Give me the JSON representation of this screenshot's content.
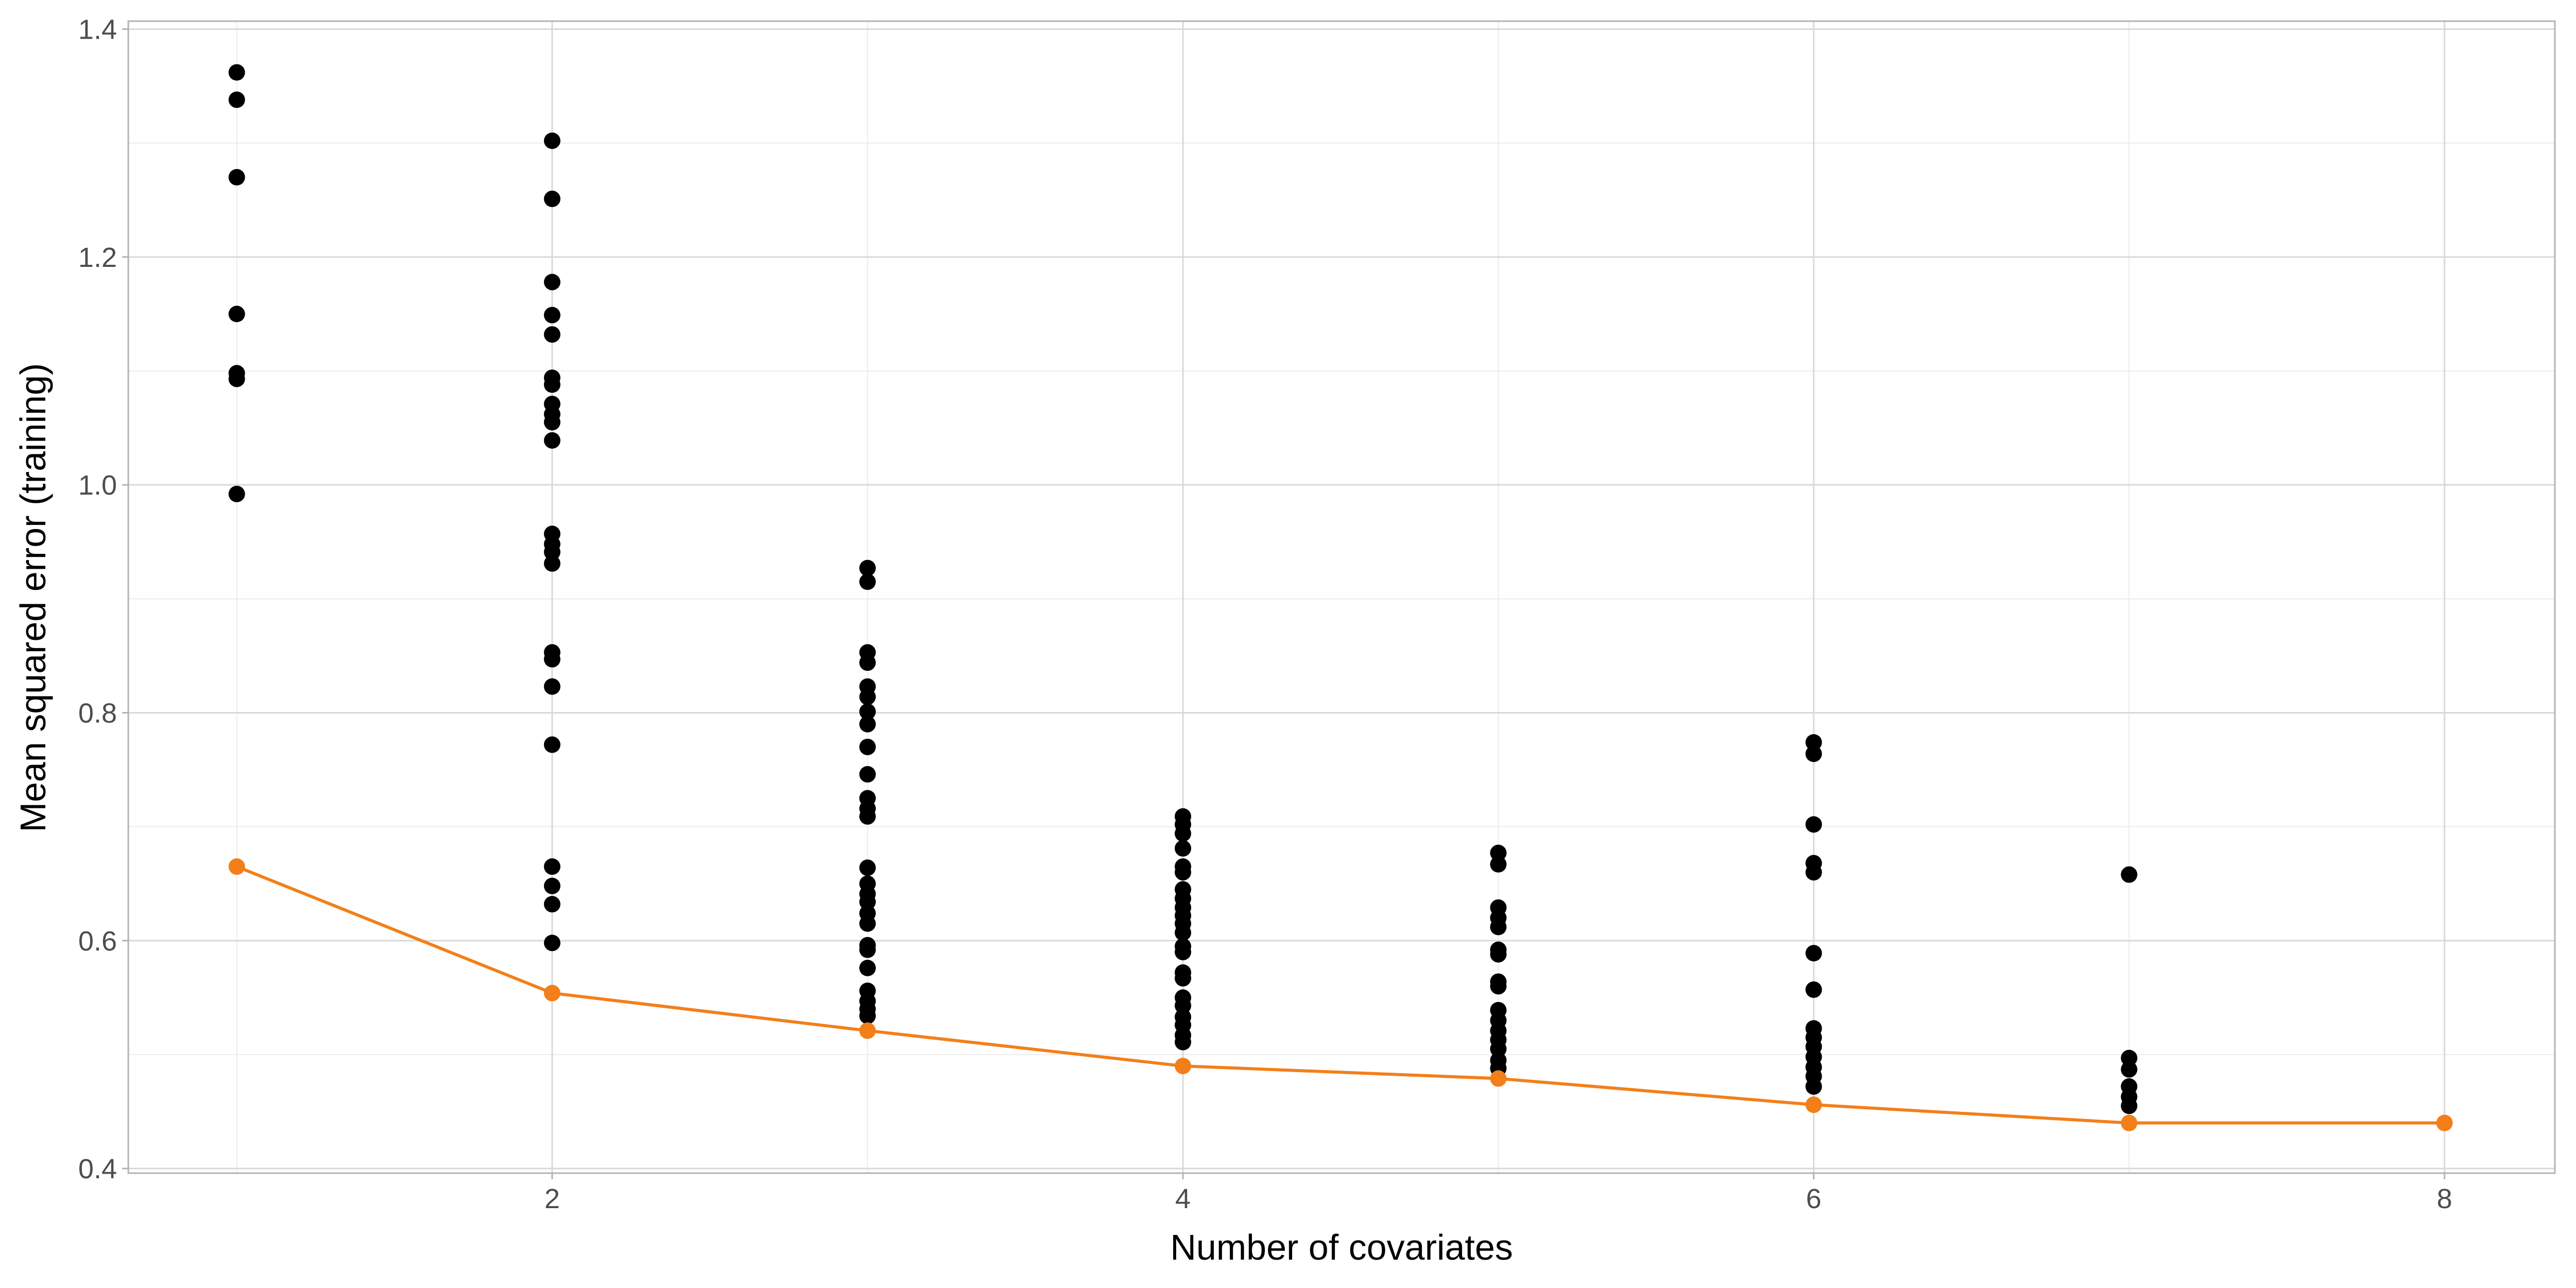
{
  "chart_data": {
    "type": "scatter",
    "x_label": "Number of covariates",
    "y_label": "Mean squared error (training)",
    "xlim": [
      0.656,
      8.35
    ],
    "ylim": [
      0.396,
      1.407
    ],
    "xticks": [
      2,
      4,
      6,
      8
    ],
    "yticks": [
      0.4,
      0.6,
      0.8,
      {
        "value": 1,
        "label": "1.0"
      },
      1.2,
      1.4
    ],
    "x_minor_ticks": [
      1,
      3,
      5,
      7
    ],
    "y_minor_ticks": [
      0.5,
      0.7,
      0.9,
      1.1,
      1.3
    ],
    "grid": true,
    "series": [
      {
        "color": "#000000",
        "x": [
          1,
          1,
          1,
          1,
          1,
          1,
          1,
          2,
          2,
          2,
          2,
          2,
          2,
          2,
          2,
          2,
          2,
          2,
          2,
          2,
          2,
          2,
          2,
          2,
          2,
          2,
          2,
          2,
          2,
          2,
          3,
          3,
          3,
          3,
          3,
          3,
          3,
          3,
          3,
          3,
          3,
          3,
          3,
          3,
          3,
          3,
          3,
          3,
          3,
          3,
          3,
          3,
          3,
          3,
          3,
          3,
          4,
          4,
          4,
          4,
          4,
          4,
          4,
          4,
          4,
          4,
          4,
          4,
          4,
          4,
          4,
          4,
          4,
          4,
          4,
          4,
          4,
          4,
          5,
          5,
          5,
          5,
          5,
          5,
          5,
          5,
          5,
          5,
          5,
          5,
          5,
          5,
          5,
          5,
          6,
          6,
          6,
          6,
          6,
          6,
          6,
          6,
          6,
          6,
          6,
          6,
          6,
          6,
          7,
          7,
          7,
          7,
          7,
          7
        ],
        "values": [
          1.362,
          1.338,
          1.27,
          1.15,
          1.098,
          1.093,
          0.992,
          1.302,
          1.251,
          1.178,
          1.149,
          1.132,
          1.094,
          1.088,
          1.071,
          1.062,
          1.055,
          1.039,
          0.957,
          0.948,
          0.941,
          0.931,
          0.853,
          0.847,
          0.823,
          0.772,
          0.665,
          0.648,
          0.632,
          0.598,
          0.927,
          0.915,
          0.853,
          0.844,
          0.823,
          0.814,
          0.801,
          0.79,
          0.77,
          0.746,
          0.725,
          0.716,
          0.709,
          0.664,
          0.65,
          0.641,
          0.634,
          0.624,
          0.615,
          0.596,
          0.592,
          0.576,
          0.556,
          0.547,
          0.54,
          0.534,
          0.709,
          0.702,
          0.694,
          0.681,
          0.665,
          0.66,
          0.645,
          0.637,
          0.629,
          0.622,
          0.615,
          0.607,
          0.595,
          0.59,
          0.572,
          0.567,
          0.55,
          0.543,
          0.533,
          0.526,
          0.517,
          0.511,
          0.677,
          0.667,
          0.629,
          0.62,
          0.612,
          0.592,
          0.588,
          0.564,
          0.56,
          0.539,
          0.53,
          0.521,
          0.513,
          0.505,
          0.495,
          0.488,
          0.774,
          0.764,
          0.702,
          0.668,
          0.66,
          0.589,
          0.557,
          0.523,
          0.515,
          0.507,
          0.498,
          0.489,
          0.481,
          0.472,
          0.658,
          0.497,
          0.487,
          0.472,
          0.463,
          0.455
        ]
      },
      {
        "color": "#f37f1a",
        "type": "line",
        "x": [
          1,
          2,
          3,
          4,
          5,
          6,
          7,
          8
        ],
        "values": [
          0.665,
          0.554,
          0.521,
          0.49,
          0.479,
          0.456,
          0.44,
          0.44
        ]
      }
    ]
  }
}
